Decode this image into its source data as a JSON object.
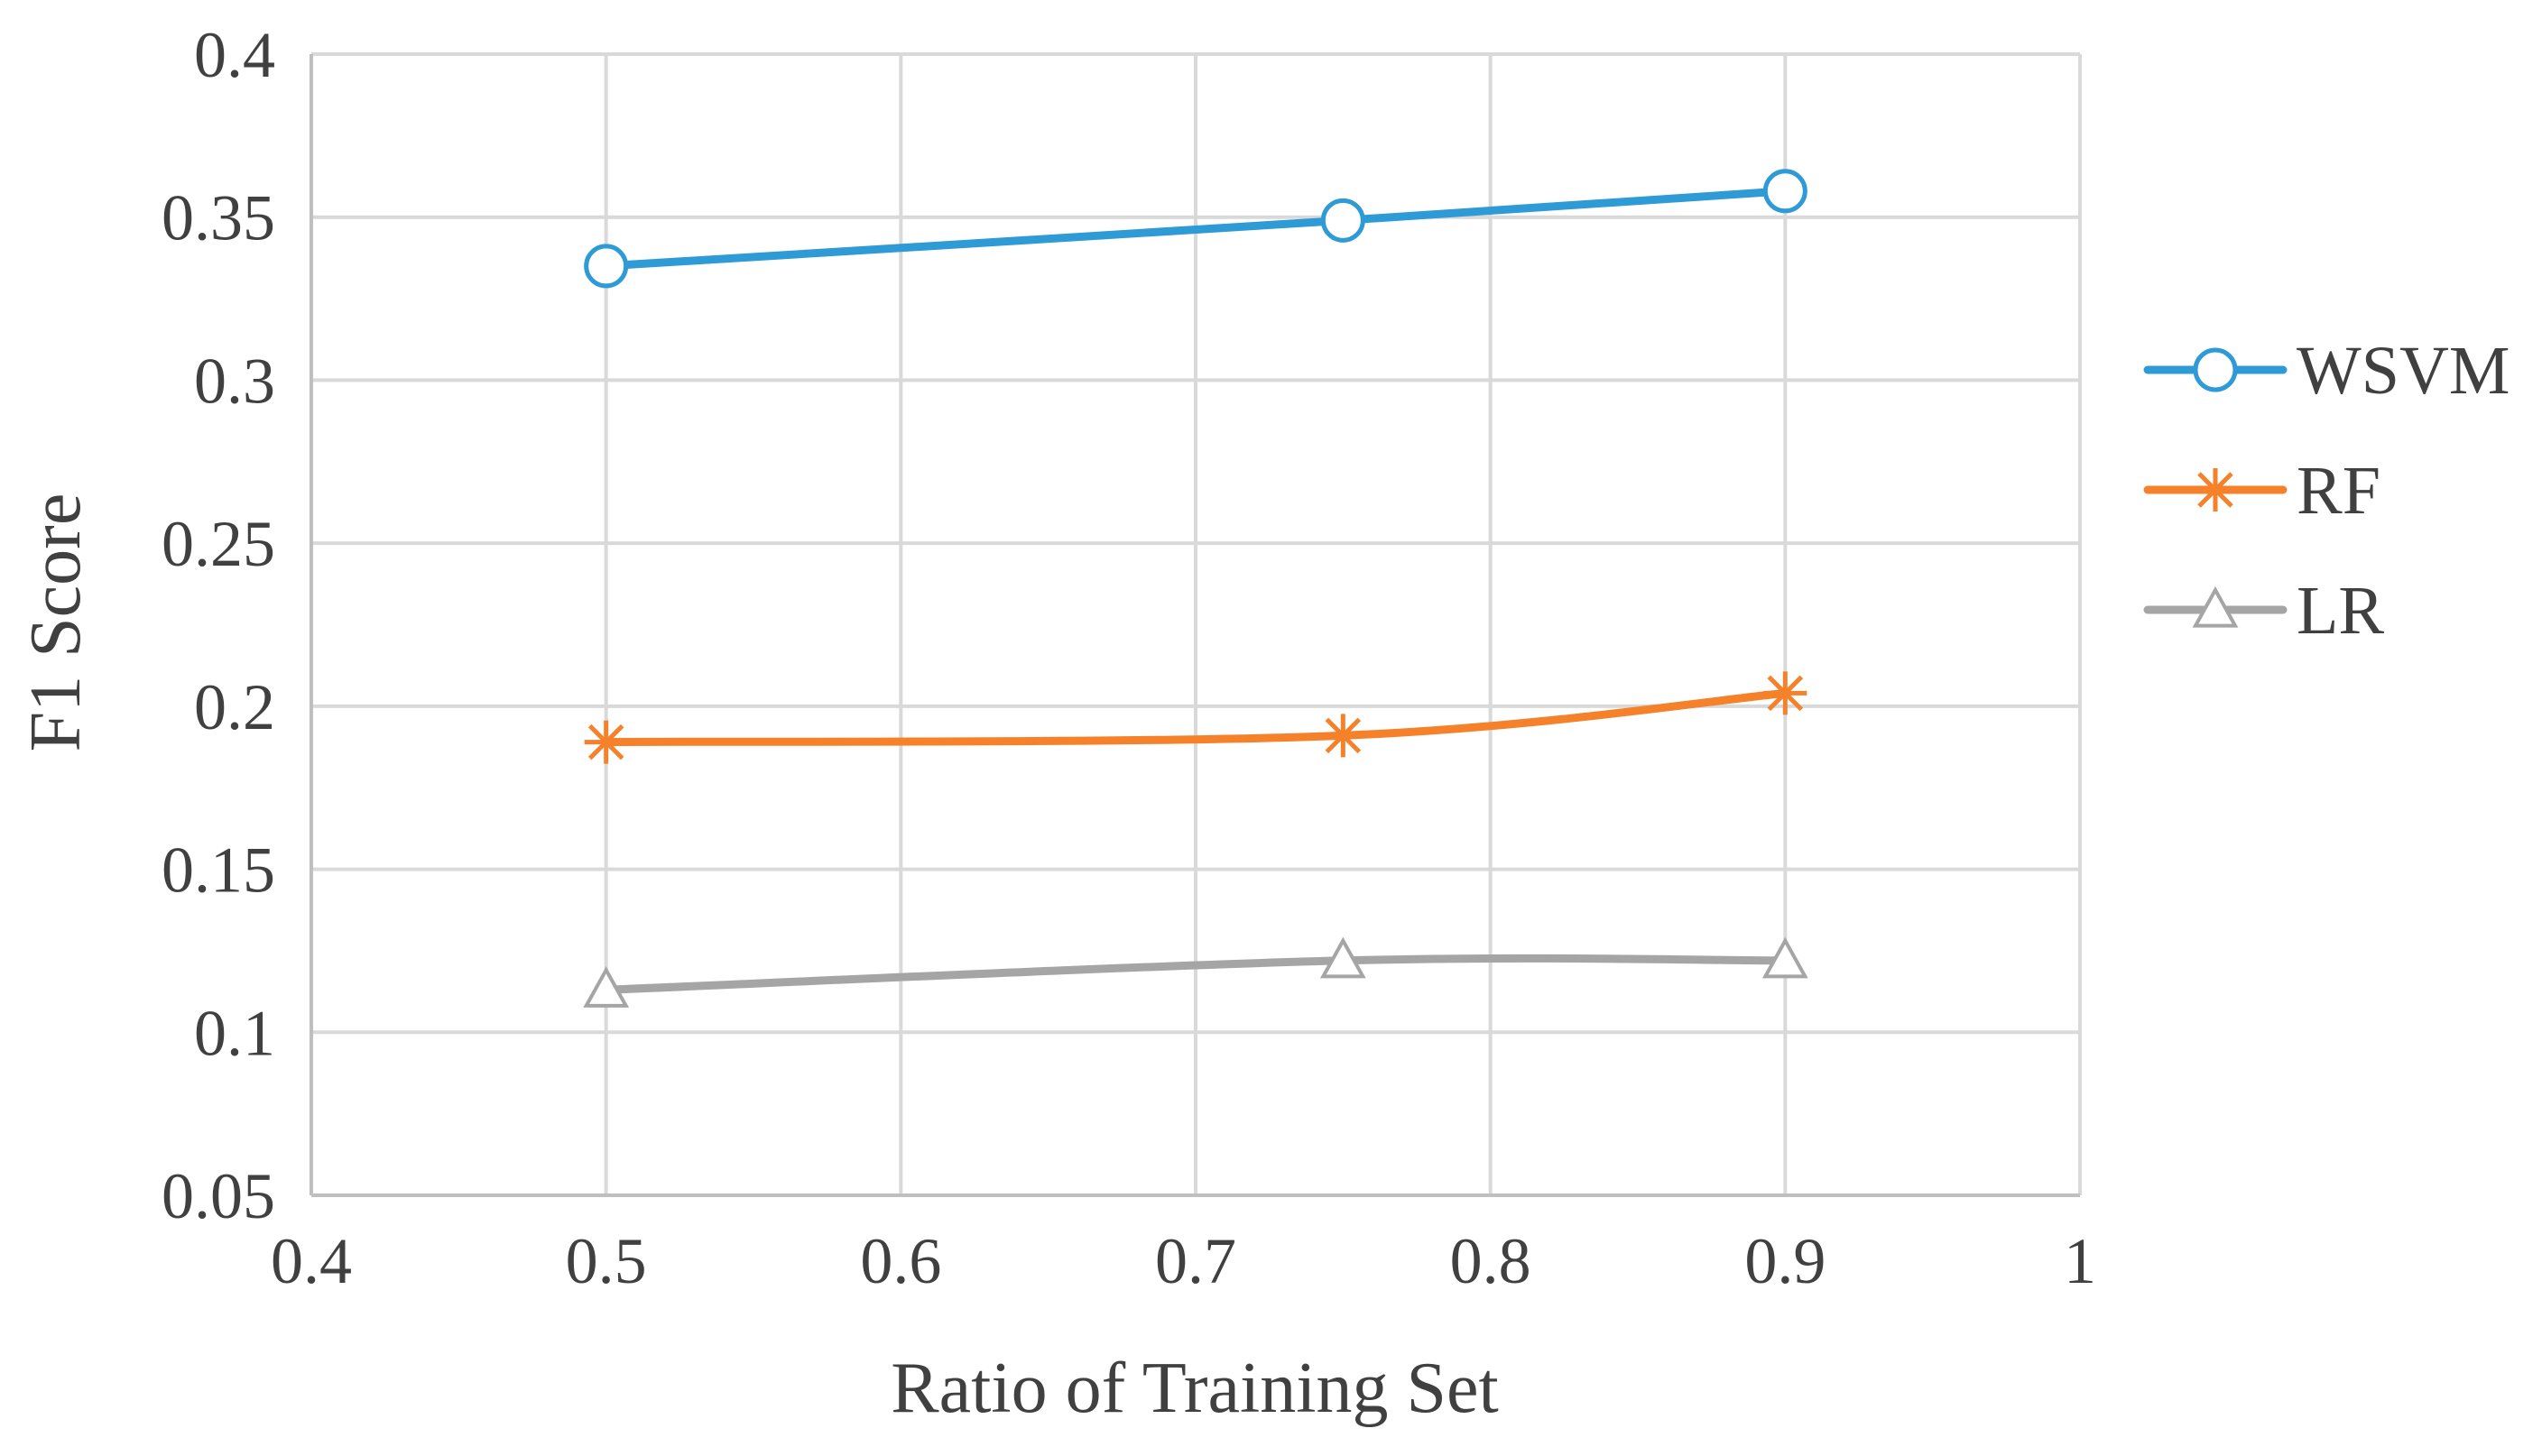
{
  "chart_data": {
    "type": "line",
    "title": "",
    "xlabel": "Ratio of Training Set",
    "ylabel": "F1 Score",
    "xlim": [
      0.4,
      1.0
    ],
    "ylim": [
      0.05,
      0.4
    ],
    "x_ticks": [
      0.4,
      0.5,
      0.6,
      0.7,
      0.8,
      0.9,
      1.0
    ],
    "x_tick_labels": [
      "0.4",
      "0.5",
      "0.6",
      "0.7",
      "0.8",
      "0.9",
      "1"
    ],
    "y_ticks": [
      0.05,
      0.1,
      0.15,
      0.2,
      0.25,
      0.3,
      0.35,
      0.4
    ],
    "y_tick_labels": [
      "0.05",
      "0.1",
      "0.15",
      "0.2",
      "0.25",
      "0.3",
      "0.35",
      "0.4"
    ],
    "grid": true,
    "legend_position": "right",
    "series": [
      {
        "name": "WSVM",
        "color": "#2e9bd6",
        "marker": "circle",
        "x": [
          0.5,
          0.75,
          0.9
        ],
        "values": [
          0.335,
          0.349,
          0.358
        ]
      },
      {
        "name": "RF",
        "color": "#f5812a",
        "marker": "asterisk",
        "x": [
          0.5,
          0.75,
          0.9
        ],
        "values": [
          0.189,
          0.191,
          0.204
        ]
      },
      {
        "name": "LR",
        "color": "#a5a5a5",
        "marker": "triangle",
        "x": [
          0.5,
          0.75,
          0.9
        ],
        "values": [
          0.113,
          0.122,
          0.122
        ]
      }
    ]
  }
}
